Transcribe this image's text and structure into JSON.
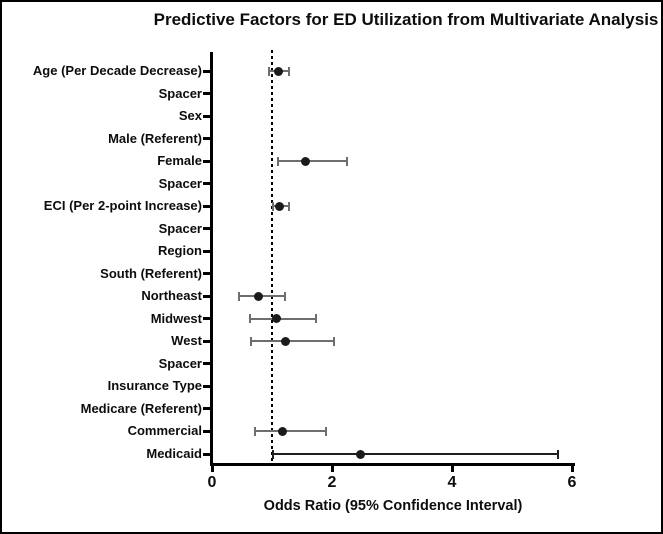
{
  "window": {
    "kind": "statistical-figure",
    "background": "#ffffff",
    "border_color": "#000000"
  },
  "colors": {
    "axis": "#000000",
    "text": "#0d0d0d",
    "marker": "#1b1b1b",
    "error_bar_gray": "#6e6e6e",
    "error_bar_black": "#1f1f1f",
    "reference_line": "#000000"
  },
  "chart_data": {
    "type": "scatter",
    "subtype": "forest-plot",
    "title": "Predictive Factors for ED Utilization from Multivariate Analysis",
    "xlabel": "Odds Ratio (95% Confidence Interval)",
    "ylabel": "",
    "xlim": [
      0,
      6
    ],
    "x_ticks": [
      0,
      2,
      4,
      6
    ],
    "reference_line_x": 1,
    "grid": false,
    "legend": "none",
    "rows": [
      {
        "label": "Age (Per Decade Decrease)",
        "or": 1.1,
        "ci_low": 0.95,
        "ci_high": 1.28,
        "line": "gray"
      },
      {
        "label": "Spacer",
        "or": null,
        "ci_low": null,
        "ci_high": null,
        "line": null
      },
      {
        "label": "Sex",
        "or": null,
        "ci_low": null,
        "ci_high": null,
        "line": null
      },
      {
        "label": "Male (Referent)",
        "or": null,
        "ci_low": null,
        "ci_high": null,
        "line": null
      },
      {
        "label": "Female",
        "or": 1.55,
        "ci_low": 1.1,
        "ci_high": 2.25,
        "line": "gray"
      },
      {
        "label": "Spacer",
        "or": null,
        "ci_low": null,
        "ci_high": null,
        "line": null
      },
      {
        "label": "ECI (Per 2-point Increase)",
        "or": 1.13,
        "ci_low": 1.02,
        "ci_high": 1.28,
        "line": "gray"
      },
      {
        "label": "Spacer",
        "or": null,
        "ci_low": null,
        "ci_high": null,
        "line": null
      },
      {
        "label": "Region",
        "or": null,
        "ci_low": null,
        "ci_high": null,
        "line": null
      },
      {
        "label": "South (Referent)",
        "or": null,
        "ci_low": null,
        "ci_high": null,
        "line": null
      },
      {
        "label": "Northeast",
        "or": 0.78,
        "ci_low": 0.45,
        "ci_high": 1.22,
        "line": "gray"
      },
      {
        "label": "Midwest",
        "or": 1.08,
        "ci_low": 0.64,
        "ci_high": 1.74,
        "line": "gray"
      },
      {
        "label": "West",
        "or": 1.22,
        "ci_low": 0.65,
        "ci_high": 2.03,
        "line": "gray"
      },
      {
        "label": "Spacer",
        "or": null,
        "ci_low": null,
        "ci_high": null,
        "line": null
      },
      {
        "label": "Insurance Type",
        "or": null,
        "ci_low": null,
        "ci_high": null,
        "line": null
      },
      {
        "label": "Medicare (Referent)",
        "or": null,
        "ci_low": null,
        "ci_high": null,
        "line": null
      },
      {
        "label": "Commercial",
        "or": 1.17,
        "ci_low": 0.72,
        "ci_high": 1.9,
        "line": "gray"
      },
      {
        "label": "Medicaid",
        "or": 2.47,
        "ci_low": 1.02,
        "ci_high": 5.77,
        "line": "black"
      }
    ]
  }
}
